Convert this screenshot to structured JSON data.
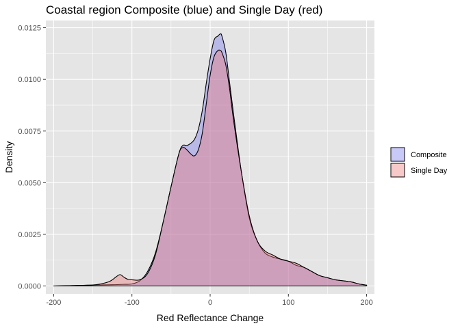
{
  "chart_data": {
    "type": "area",
    "title": "Coastal region Composite (blue) and Single Day (red)",
    "xlabel": "Red Reflectance Change",
    "ylabel": "Density",
    "xlim": [
      -210,
      210
    ],
    "ylim": [
      -0.00038,
      0.01285
    ],
    "x_ticks": [
      -200,
      -100,
      0,
      100,
      200
    ],
    "x_tick_labels": [
      "-200",
      "-100",
      "0",
      "100",
      "200"
    ],
    "y_ticks": [
      0,
      0.0025,
      0.005,
      0.0075,
      0.01,
      0.0125
    ],
    "y_tick_labels": [
      "0.0000",
      "0.0025",
      "0.0050",
      "0.0075",
      "0.0100",
      "0.0125"
    ],
    "grid": true,
    "legend_position": "right",
    "series": [
      {
        "name": "Composite",
        "fill": "#7777ee",
        "x": [
          -200,
          -175,
          -150,
          -125,
          -110,
          -100,
          -90,
          -80,
          -70,
          -60,
          -50,
          -40,
          -35,
          -30,
          -25,
          -20,
          -15,
          -10,
          -5,
          0,
          5,
          10,
          13,
          15,
          20,
          25,
          30,
          40,
          50,
          60,
          70,
          80,
          90,
          100,
          110,
          120,
          130,
          140,
          150,
          160,
          170,
          180,
          190,
          200
        ],
        "y": [
          0,
          2e-05,
          4e-05,
          6e-05,
          8e-05,
          0.0001,
          0.00025,
          0.0007,
          0.0016,
          0.0031,
          0.0048,
          0.0064,
          0.0068,
          0.0068,
          0.0069,
          0.0071,
          0.0076,
          0.0085,
          0.0098,
          0.011,
          0.0119,
          0.0121,
          0.0122,
          0.0121,
          0.0113,
          0.0098,
          0.0083,
          0.0055,
          0.0033,
          0.0022,
          0.0016,
          0.0014,
          0.0013,
          0.0012,
          0.001,
          0.0009,
          0.0007,
          0.0005,
          0.0004,
          0.0003,
          0.00025,
          0.0002,
          0.0001,
          4e-05
        ]
      },
      {
        "name": "Single Day",
        "fill": "#ee7777",
        "x": [
          -200,
          -175,
          -150,
          -140,
          -130,
          -125,
          -120,
          -115,
          -110,
          -105,
          -100,
          -90,
          -80,
          -70,
          -60,
          -50,
          -40,
          -35,
          -30,
          -25,
          -20,
          -15,
          -10,
          -5,
          0,
          5,
          10,
          13,
          15,
          20,
          25,
          30,
          40,
          50,
          60,
          70,
          80,
          90,
          100,
          110,
          120,
          130,
          140,
          150,
          160,
          170,
          180,
          190,
          200
        ],
        "y": [
          0,
          2e-05,
          5e-05,
          0.0001,
          0.0002,
          0.0003,
          0.00045,
          0.00055,
          0.00042,
          0.00032,
          0.0003,
          0.0003,
          0.0006,
          0.0015,
          0.0031,
          0.0048,
          0.0064,
          0.0067,
          0.0066,
          0.0064,
          0.0063,
          0.0066,
          0.0074,
          0.0088,
          0.0102,
          0.0111,
          0.0114,
          0.0114,
          0.0113,
          0.0107,
          0.0095,
          0.008,
          0.0055,
          0.0034,
          0.0022,
          0.0017,
          0.0015,
          0.0013,
          0.0012,
          0.0011,
          0.0009,
          0.0007,
          0.0005,
          0.0004,
          0.0003,
          0.00025,
          0.0002,
          0.0001,
          4e-05
        ]
      }
    ],
    "background": "#e5e5e5",
    "gridline_color": "#ffffff"
  }
}
